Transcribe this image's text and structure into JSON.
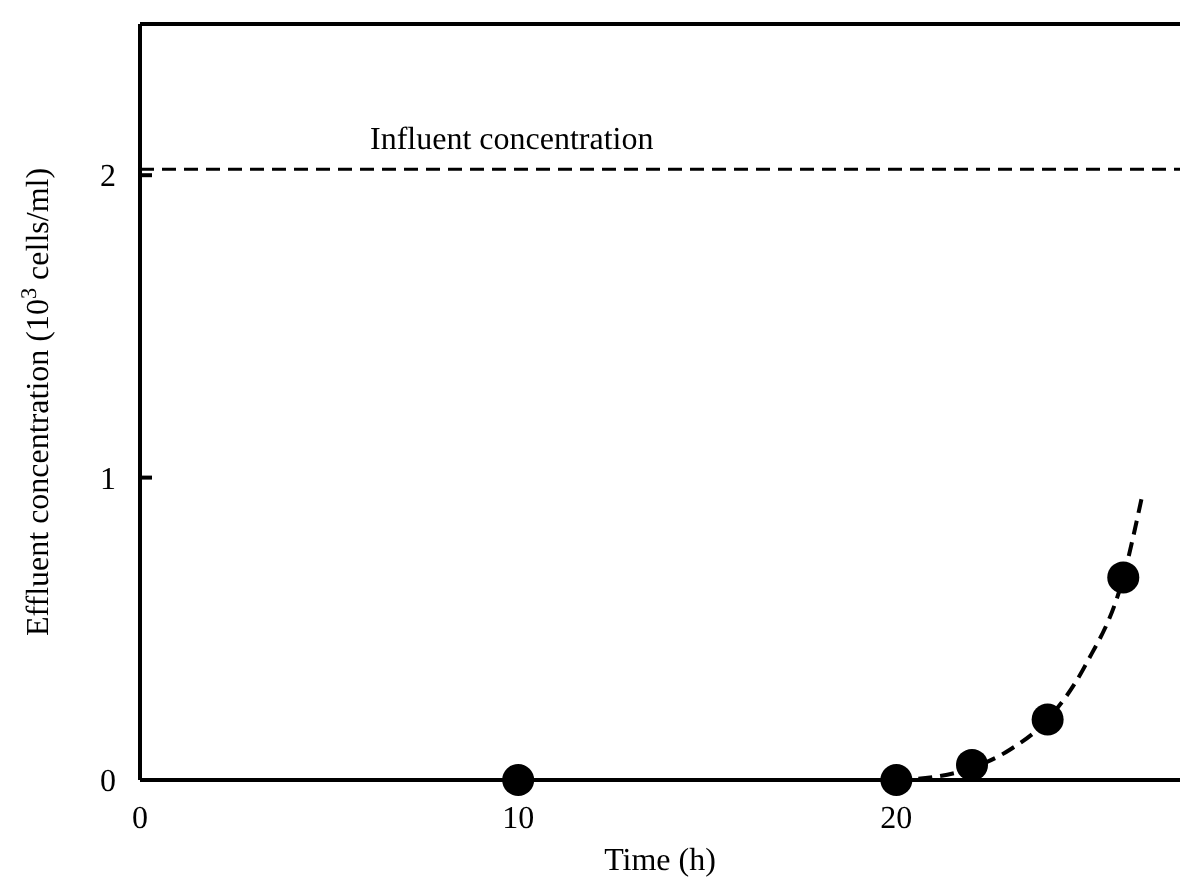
{
  "chart_data": {
    "type": "scatter",
    "xlabel": "Time (h)",
    "ylabel": "Effluent concentration (10$^{3}$ cells/ml)",
    "xlim": [
      0,
      27.5
    ],
    "ylim": [
      0,
      2.5
    ],
    "xticks": [
      0,
      10,
      20
    ],
    "yticks": [
      0,
      1,
      2
    ],
    "grid": false,
    "marker": "circle",
    "series": [
      {
        "color": "#000000",
        "x": [
          10,
          20,
          22,
          24,
          26
        ],
        "values": [
          0,
          0,
          0.05,
          0.2,
          0.67
        ]
      },
      {
        "type": "line",
        "color": "#000000",
        "line_style": "dashed",
        "marker": "none",
        "x": [
          20,
          21,
          22,
          23,
          24,
          25,
          26,
          26.5
        ],
        "values": [
          0,
          0.01,
          0.04,
          0.1,
          0.2,
          0.38,
          0.67,
          0.94
        ]
      }
    ],
    "ref_lines": [
      {
        "axis": "y",
        "value": 2.02,
        "label": "Influent concentration",
        "line_style": "dashed",
        "color": "#000000"
      }
    ]
  }
}
